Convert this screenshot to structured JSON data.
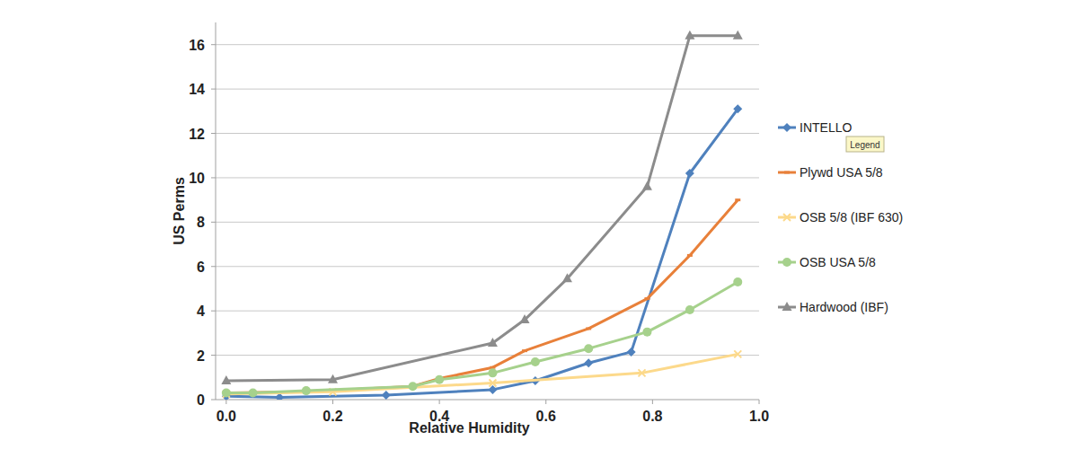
{
  "chart_data": {
    "type": "line",
    "x_label": "Relative Humidity",
    "y_label": "US Perms",
    "xlim": [
      -0.02,
      1.0
    ],
    "xticks": [
      {
        "value": 0,
        "label": "0.0"
      },
      0.2,
      0.4,
      0.6,
      0.8,
      {
        "value": 1,
        "label": "1.0"
      }
    ],
    "ylim": [
      0,
      17
    ],
    "yticks": [
      0,
      2,
      4,
      6,
      8,
      10,
      12,
      14,
      16
    ],
    "grid": true,
    "legend": "right",
    "annotations": [
      "Legend"
    ],
    "series": [
      {
        "name": "INTELLO",
        "color": "#4f81bd",
        "marker": "diamond",
        "x": [
          0,
          0.1,
          0.3,
          0.5,
          0.58,
          0.68,
          0.76,
          0.87,
          0.96
        ],
        "values": [
          0.15,
          0.1,
          0.2,
          0.45,
          0.85,
          1.65,
          2.15,
          10.2,
          13.1
        ]
      },
      {
        "name": "Plywd USA 5/8",
        "color": "#e8803a",
        "marker": "dash",
        "x": [
          0,
          0.15,
          0.35,
          0.4,
          0.5,
          0.56,
          0.68,
          0.79,
          0.87,
          0.96
        ],
        "values": [
          0.3,
          0.35,
          0.6,
          0.95,
          1.45,
          2.2,
          3.2,
          4.55,
          6.5,
          9.0
        ]
      },
      {
        "name": "OSB 5/8 (IBF 630)",
        "color": "#fcd98b",
        "marker": "x",
        "x": [
          0,
          0.2,
          0.5,
          0.78,
          0.96
        ],
        "values": [
          0.25,
          0.35,
          0.75,
          1.2,
          2.05
        ]
      },
      {
        "name": "OSB USA 5/8",
        "color": "#a6d18c",
        "marker": "circle",
        "x": [
          0,
          0.05,
          0.15,
          0.35,
          0.4,
          0.5,
          0.58,
          0.68,
          0.79,
          0.87,
          0.96
        ],
        "values": [
          0.3,
          0.3,
          0.4,
          0.6,
          0.9,
          1.2,
          1.7,
          2.3,
          3.05,
          4.05,
          5.3
        ]
      },
      {
        "name": "Hardwood (IBF)",
        "color": "#8c8c8c",
        "marker": "triangle",
        "x": [
          0,
          0.2,
          0.5,
          0.56,
          0.64,
          0.79,
          0.87,
          0.96
        ],
        "values": [
          0.85,
          0.9,
          2.55,
          3.6,
          5.45,
          9.6,
          16.4,
          16.4
        ]
      }
    ]
  }
}
